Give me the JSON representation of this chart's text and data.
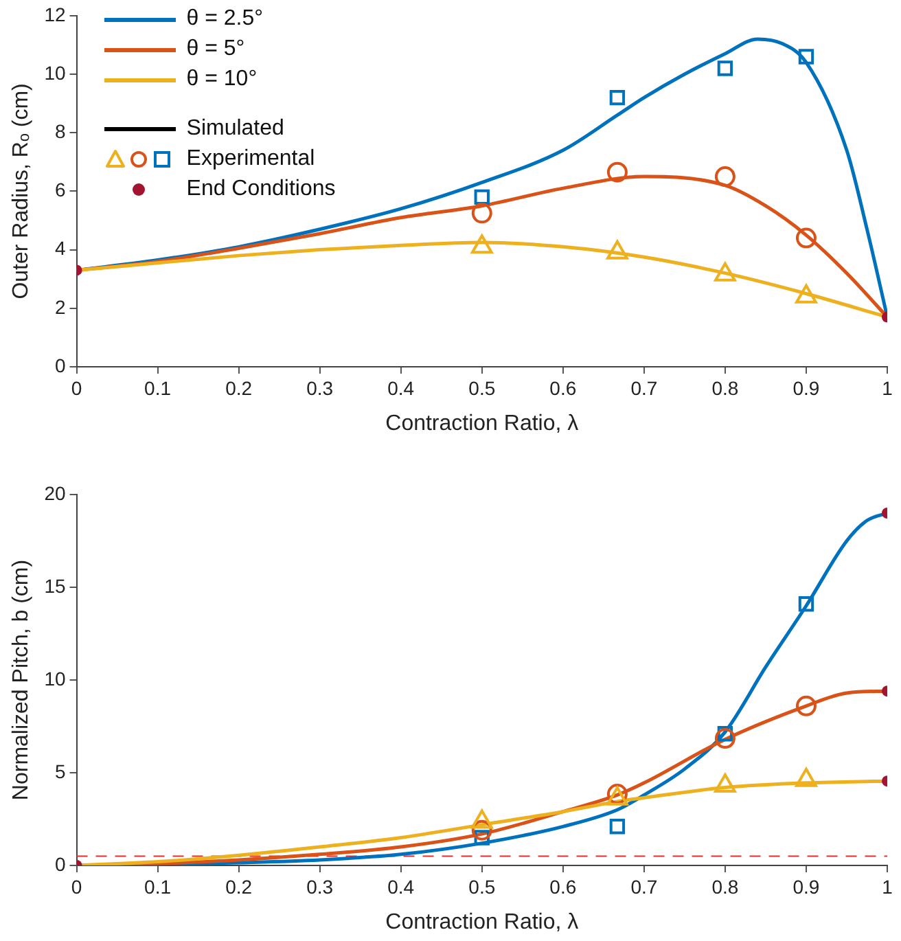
{
  "chart_data": [
    {
      "type": "line",
      "xlabel": "Contraction Ratio, λ",
      "ylabel": "Outer Radius, Rₒ (cm)",
      "xlim": [
        0,
        1
      ],
      "xticks": [
        0,
        0.1,
        0.2,
        0.3,
        0.4,
        0.5,
        0.6,
        0.7,
        0.8,
        0.9,
        1
      ],
      "ylim": [
        0,
        12
      ],
      "yticks": [
        0,
        2,
        4,
        6,
        8,
        10,
        12
      ],
      "grid": false,
      "legend": "top left",
      "annotations": [
        "Simulated"
      ],
      "series": [
        {
          "name": "θ = 2.5°",
          "color": "#0072bd",
          "marker": "none",
          "x": [
            0,
            0.1,
            0.2,
            0.3,
            0.4,
            0.5,
            0.6,
            0.667,
            0.7,
            0.75,
            0.8,
            0.84,
            0.87,
            0.9,
            0.95,
            0.975,
            1
          ],
          "values": [
            3.3,
            3.65,
            4.1,
            4.7,
            5.4,
            6.3,
            7.4,
            8.6,
            9.2,
            10.0,
            10.7,
            11.2,
            11.05,
            10.4,
            7.4,
            4.7,
            1.7
          ]
        },
        {
          "name": "θ = 5°",
          "color": "#d95319",
          "marker": "none",
          "x": [
            0,
            0.1,
            0.2,
            0.3,
            0.4,
            0.5,
            0.6,
            0.7,
            0.8,
            0.85,
            0.9,
            0.95,
            1
          ],
          "values": [
            3.3,
            3.6,
            4.05,
            4.55,
            5.1,
            5.5,
            6.1,
            6.5,
            6.2,
            5.5,
            4.5,
            3.2,
            1.7
          ]
        },
        {
          "name": "θ = 10°",
          "color": "#edb120",
          "marker": "none",
          "x": [
            0,
            0.1,
            0.2,
            0.3,
            0.4,
            0.5,
            0.6,
            0.7,
            0.8,
            0.9,
            1
          ],
          "values": [
            3.3,
            3.55,
            3.8,
            4.0,
            4.15,
            4.25,
            4.1,
            3.75,
            3.2,
            2.5,
            1.7
          ]
        },
        {
          "name": "Experimental",
          "type": "scatter",
          "color": "#0072bd",
          "marker": "square",
          "x": [
            0.5,
            0.667,
            0.8,
            0.9
          ],
          "values": [
            5.8,
            9.2,
            10.2,
            10.6
          ]
        },
        {
          "type": "scatter",
          "color": "#d95319",
          "marker": "circle",
          "x": [
            0.5,
            0.667,
            0.8,
            0.9
          ],
          "values": [
            5.25,
            6.65,
            6.5,
            4.4
          ]
        },
        {
          "type": "scatter",
          "color": "#edb120",
          "marker": "triangle",
          "x": [
            0.5,
            0.667,
            0.8,
            0.9
          ],
          "values": [
            4.1,
            3.9,
            3.15,
            2.4
          ]
        },
        {
          "name": "End Conditions",
          "type": "scatter",
          "color": "#a2142f",
          "marker": "circle",
          "x": [
            0,
            1
          ],
          "values": [
            3.3,
            1.7
          ]
        }
      ]
    },
    {
      "type": "line",
      "xlabel": "Contraction Ratio, λ",
      "ylabel": "Normalized Pitch, b (cm)",
      "xlim": [
        0,
        1
      ],
      "xticks": [
        0,
        0.1,
        0.2,
        0.3,
        0.4,
        0.5,
        0.6,
        0.7,
        0.8,
        0.9,
        1
      ],
      "ylim": [
        0,
        20
      ],
      "yticks": [
        0,
        5,
        10,
        15,
        20
      ],
      "grid": false,
      "legend": false,
      "ref_lines": [
        {
          "axis": "y",
          "value": 0.5,
          "color": "#e03030",
          "line_style": "dashed"
        }
      ],
      "series": [
        {
          "color": "#0072bd",
          "marker": "none",
          "x": [
            0,
            0.1,
            0.2,
            0.3,
            0.4,
            0.5,
            0.6,
            0.667,
            0.7,
            0.75,
            0.8,
            0.85,
            0.9,
            0.95,
            0.975,
            1
          ],
          "values": [
            0,
            0.05,
            0.15,
            0.3,
            0.6,
            1.2,
            2.1,
            3.0,
            3.8,
            5.2,
            7.2,
            10.7,
            14.0,
            17.5,
            18.6,
            19.0
          ]
        },
        {
          "color": "#d95319",
          "marker": "none",
          "x": [
            0,
            0.1,
            0.2,
            0.3,
            0.4,
            0.5,
            0.6,
            0.667,
            0.7,
            0.8,
            0.9,
            0.95,
            1
          ],
          "values": [
            0,
            0.1,
            0.3,
            0.6,
            1.0,
            1.7,
            2.9,
            3.8,
            4.45,
            6.8,
            8.6,
            9.3,
            9.4
          ]
        },
        {
          "color": "#edb120",
          "marker": "none",
          "x": [
            0,
            0.1,
            0.2,
            0.3,
            0.4,
            0.5,
            0.6,
            0.667,
            0.7,
            0.8,
            0.9,
            1
          ],
          "values": [
            0,
            0.2,
            0.55,
            1.0,
            1.5,
            2.2,
            2.9,
            3.45,
            3.65,
            4.2,
            4.45,
            4.55
          ]
        },
        {
          "type": "scatter",
          "color": "#0072bd",
          "marker": "square",
          "x": [
            0.5,
            0.667,
            0.8,
            0.9
          ],
          "values": [
            1.5,
            2.1,
            7.1,
            14.1
          ]
        },
        {
          "type": "scatter",
          "color": "#d95319",
          "marker": "circle",
          "x": [
            0.5,
            0.667,
            0.8,
            0.9
          ],
          "values": [
            1.9,
            3.85,
            6.85,
            8.6
          ]
        },
        {
          "type": "scatter",
          "color": "#edb120",
          "marker": "triangle",
          "x": [
            0.5,
            0.667,
            0.8,
            0.9
          ],
          "values": [
            2.35,
            3.6,
            4.3,
            4.6
          ]
        },
        {
          "type": "scatter",
          "color": "#a2142f",
          "marker": "circle",
          "x": [
            0,
            1,
            1,
            1
          ],
          "values": [
            0,
            19.0,
            9.4,
            4.55
          ]
        }
      ]
    }
  ]
}
